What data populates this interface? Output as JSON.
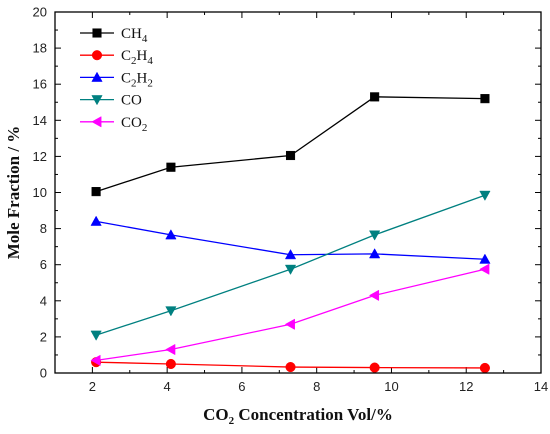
{
  "chart_data": {
    "type": "line",
    "title": "",
    "xlabel": {
      "main": "CO",
      "sub": "2",
      "rest": " Concentration Vol/%"
    },
    "ylabel": "Mole Fraction / %",
    "xlim": [
      1,
      14
    ],
    "ylim": [
      0,
      20
    ],
    "xticks": [
      "2",
      "4",
      "6",
      "8",
      "10",
      "12",
      "14"
    ],
    "yticks": [
      "0",
      "2",
      "4",
      "6",
      "8",
      "10",
      "12",
      "14",
      "16",
      "18",
      "20"
    ],
    "grid": false,
    "legend_position": "top-left",
    "series": [
      {
        "label_main": "CH",
        "label_sub": "4",
        "color": "#000000",
        "marker": "square",
        "x": [
          2.1,
          4.1,
          7.3,
          9.55,
          12.5
        ],
        "y": [
          10.05,
          11.4,
          12.05,
          15.3,
          15.2
        ]
      },
      {
        "label_main": "C",
        "label_sub": "2",
        "label_main2": "H",
        "label_sub2": "4",
        "color": "#ff0000",
        "marker": "circle",
        "x": [
          2.1,
          4.1,
          7.3,
          9.55,
          12.5
        ],
        "y": [
          0.6,
          0.5,
          0.33,
          0.3,
          0.28
        ]
      },
      {
        "label_main": "C",
        "label_sub": "2",
        "label_main2": "H",
        "label_sub2": "2",
        "color": "#0000ff",
        "marker": "triangle-up",
        "x": [
          2.1,
          4.1,
          7.3,
          9.55,
          12.5
        ],
        "y": [
          8.4,
          7.65,
          6.55,
          6.6,
          6.3
        ]
      },
      {
        "label_main": "CO",
        "label_sub": "",
        "color": "#008080",
        "marker": "triangle-down",
        "x": [
          2.1,
          4.1,
          7.3,
          9.55,
          12.5
        ],
        "y": [
          2.1,
          3.45,
          5.75,
          7.65,
          9.85
        ]
      },
      {
        "label_main": "CO",
        "label_sub": "2",
        "color": "#ff00ff",
        "marker": "triangle-left",
        "x": [
          2.1,
          4.1,
          7.3,
          9.55,
          12.5
        ],
        "y": [
          0.7,
          1.3,
          2.7,
          4.3,
          5.75
        ]
      }
    ]
  }
}
